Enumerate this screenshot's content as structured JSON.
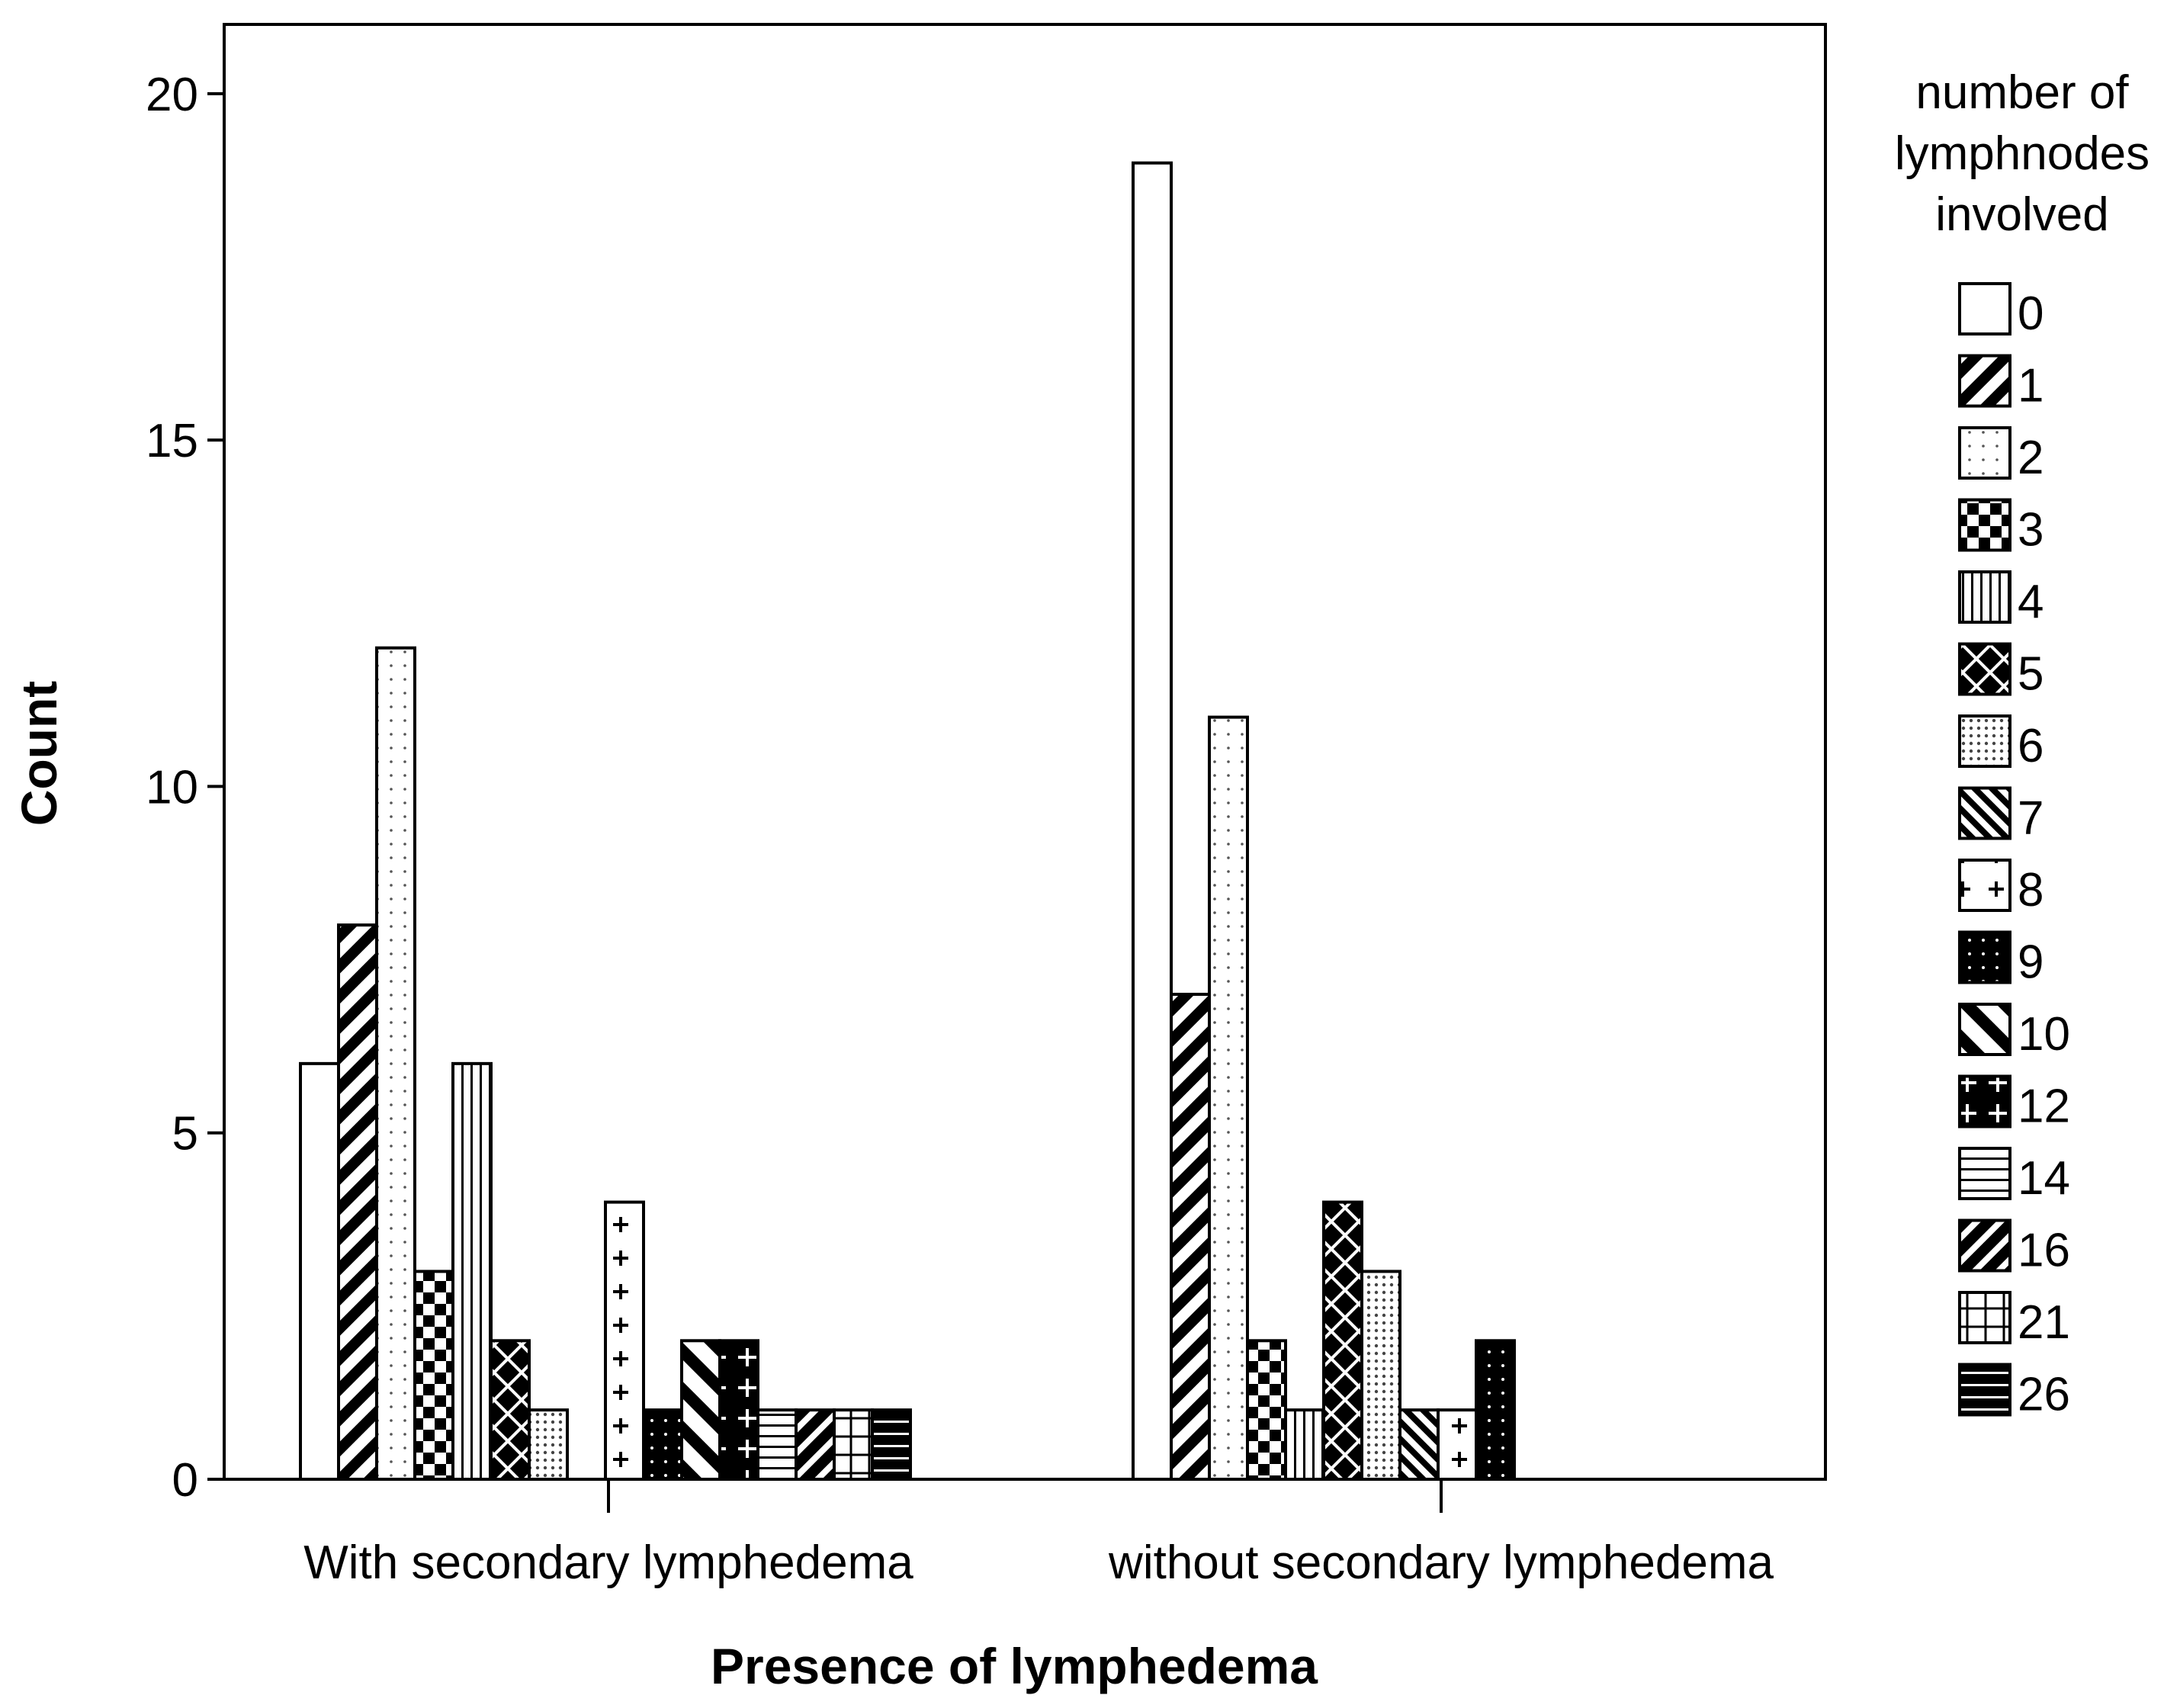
{
  "chart_data": {
    "type": "bar",
    "title": "",
    "xlabel": "Presence of lymphedema",
    "ylabel": "Count",
    "ylim": [
      0,
      21
    ],
    "yticks": [
      0,
      5,
      10,
      15,
      20
    ],
    "grid": false,
    "legend_position": "right",
    "legend_title": [
      "number of",
      "lymphnodes",
      "involved"
    ],
    "categories": [
      "With secondary lymphedema",
      "without secondary lymphedema"
    ],
    "series": [
      {
        "name": "0",
        "pattern": "white",
        "values": [
          6,
          19
        ]
      },
      {
        "name": "1",
        "pattern": "diag-thick",
        "values": [
          8,
          7
        ]
      },
      {
        "name": "2",
        "pattern": "dots-sparse",
        "values": [
          12,
          11
        ]
      },
      {
        "name": "3",
        "pattern": "checker",
        "values": [
          3,
          2
        ]
      },
      {
        "name": "4",
        "pattern": "vlines",
        "values": [
          6,
          1
        ]
      },
      {
        "name": "5",
        "pattern": "xcross",
        "values": [
          2,
          4
        ]
      },
      {
        "name": "6",
        "pattern": "dots-dense",
        "values": [
          1,
          3
        ]
      },
      {
        "name": "7",
        "pattern": "backdiag",
        "values": [
          0,
          1
        ]
      },
      {
        "name": "8",
        "pattern": "plus",
        "values": [
          4,
          1
        ]
      },
      {
        "name": "9",
        "pattern": "dark-dots",
        "values": [
          1,
          2
        ]
      },
      {
        "name": "10",
        "pattern": "backdiag-wide",
        "values": [
          2,
          0
        ]
      },
      {
        "name": "12",
        "pattern": "dark-plus",
        "values": [
          2,
          0
        ]
      },
      {
        "name": "14",
        "pattern": "hlines",
        "values": [
          1,
          0
        ]
      },
      {
        "name": "16",
        "pattern": "diag-dark",
        "values": [
          1,
          0
        ]
      },
      {
        "name": "21",
        "pattern": "grid",
        "values": [
          1,
          0
        ]
      },
      {
        "name": "26",
        "pattern": "dark-hlines",
        "values": [
          1,
          0
        ]
      }
    ]
  }
}
